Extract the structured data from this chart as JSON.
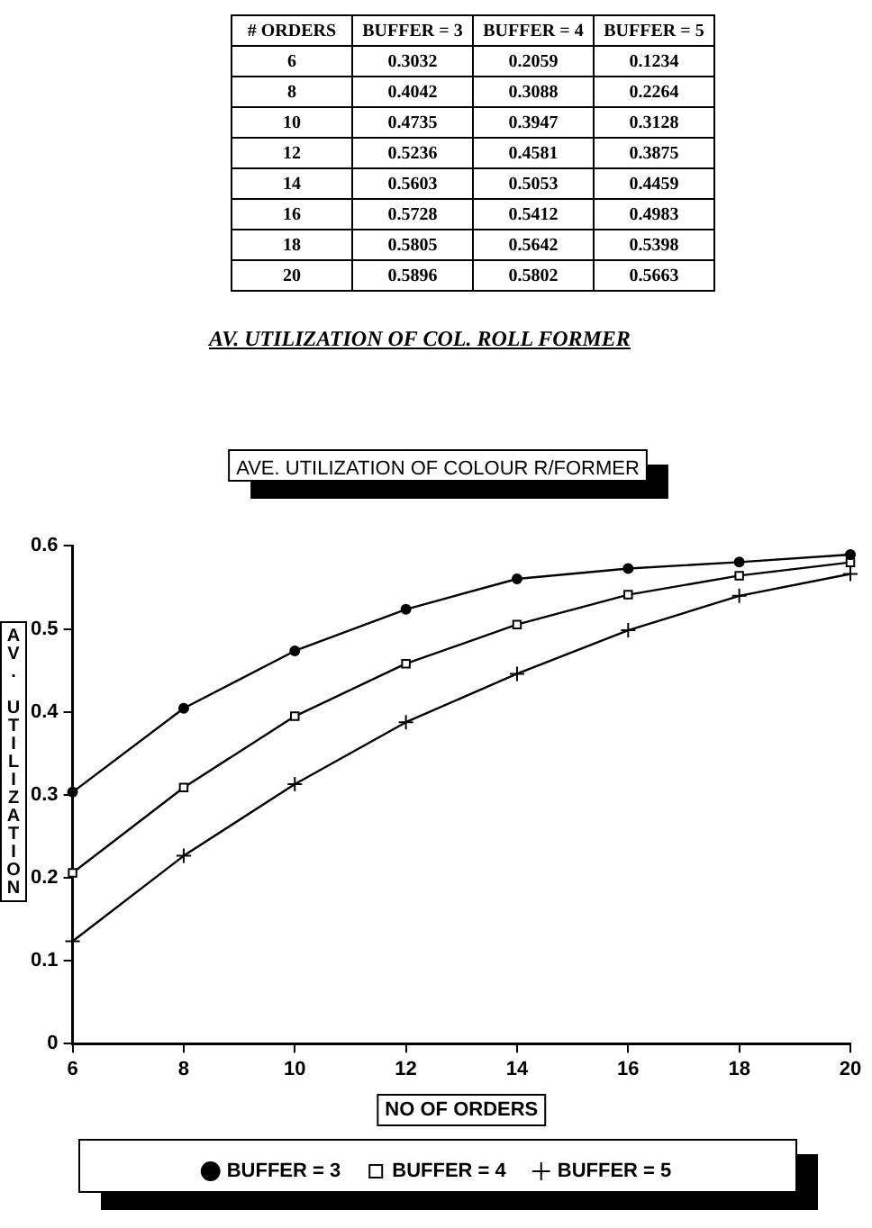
{
  "chart_data": [
    {
      "type": "heatmap",
      "data_labels": true,
      "ylabel": "# ORDERS",
      "annotations": [
        "AV. UTILIZATION OF COL. ROLL FORMER"
      ],
      "categories": [
        "BUFFER = 3",
        "BUFFER = 4",
        "BUFFER = 5"
      ],
      "y_categories": [
        "6",
        "8",
        "10",
        "12",
        "14",
        "16",
        "18",
        "20"
      ],
      "cells": [
        [
          0.3032,
          0.2059,
          0.1234
        ],
        [
          0.4042,
          0.3088,
          0.2264
        ],
        [
          0.4735,
          0.3947,
          0.3128
        ],
        [
          0.5236,
          0.4581,
          0.3875
        ],
        [
          0.5603,
          0.5053,
          0.4459
        ],
        [
          0.5728,
          0.5412,
          0.4983
        ],
        [
          0.5805,
          0.5642,
          0.5398
        ],
        [
          0.5896,
          0.5802,
          0.5663
        ]
      ]
    },
    {
      "type": "line",
      "title": "AVE. UTILIZATION OF COLOUR R/FORMER",
      "xlabel": "NO OF ORDERS",
      "ylabel": "AV. UTILIZATION",
      "x": [
        6,
        8,
        10,
        12,
        14,
        16,
        18,
        20
      ],
      "xlim": [
        6,
        20
      ],
      "xticks": [
        6,
        8,
        10,
        12,
        14,
        16,
        18,
        20
      ],
      "ylim": [
        0,
        0.6
      ],
      "yticks": [
        0,
        0.1,
        0.2,
        0.3,
        0.4,
        0.5,
        0.6
      ],
      "series": [
        {
          "name": "BUFFER = 3",
          "color": "#000000",
          "marker": "circle",
          "values": [
            0.3032,
            0.4042,
            0.4735,
            0.5236,
            0.5603,
            0.5728,
            0.5805,
            0.5896
          ]
        },
        {
          "name": "BUFFER = 4",
          "color": "#000000",
          "marker": "square",
          "values": [
            0.2059,
            0.3088,
            0.3947,
            0.4581,
            0.5053,
            0.5412,
            0.5642,
            0.5802
          ]
        },
        {
          "name": "BUFFER = 5",
          "color": "#000000",
          "marker": "cross",
          "values": [
            0.1234,
            0.2264,
            0.3128,
            0.3875,
            0.4459,
            0.4983,
            0.5398,
            0.5663
          ]
        }
      ],
      "grid": false,
      "legend": "bottom",
      "line_style": "solid"
    }
  ]
}
